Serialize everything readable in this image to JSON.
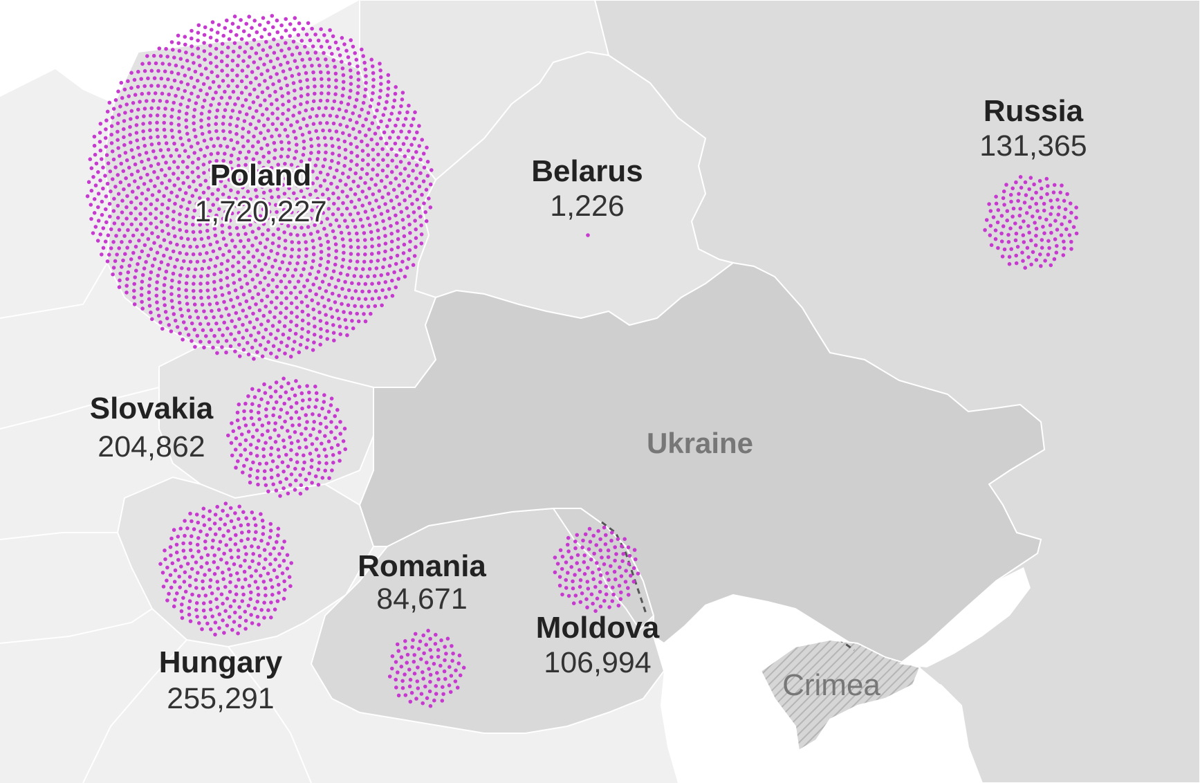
{
  "chart_data": {
    "type": "map",
    "subject": "refugees from Ukraine by country",
    "colors": {
      "dots": "#c63ad0",
      "land_light": "#e5e5e5",
      "land_dark": "#cfcfcf",
      "sea": "#ffffff"
    },
    "countries": [
      {
        "id": "poland",
        "name": "Poland",
        "value": 1720227,
        "label": "1,720,227"
      },
      {
        "id": "belarus",
        "name": "Belarus",
        "value": 1226,
        "label": "1,226"
      },
      {
        "id": "russia",
        "name": "Russia",
        "value": 131365,
        "label": "131,365"
      },
      {
        "id": "slovakia",
        "name": "Slovakia",
        "value": 204862,
        "label": "204,862"
      },
      {
        "id": "hungary",
        "name": "Hungary",
        "value": 255291,
        "label": "255,291"
      },
      {
        "id": "romania",
        "name": "Romania",
        "value": 84671,
        "label": "84,671"
      },
      {
        "id": "moldova",
        "name": "Moldova",
        "value": 106994,
        "label": "106,994"
      }
    ],
    "region_labels": {
      "ukraine": "Ukraine",
      "crimea": "Crimea"
    }
  }
}
